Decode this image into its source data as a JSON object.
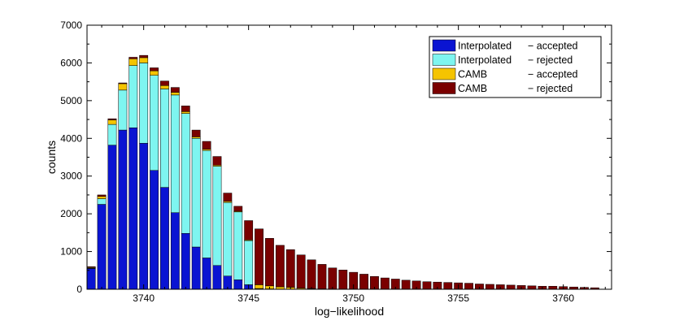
{
  "chart_data": {
    "type": "bar",
    "stacked": true,
    "title": "",
    "xlabel": "log−likelihood",
    "ylabel": "counts",
    "xlim": [
      3737.3,
      3762.3
    ],
    "ylim": [
      0,
      7000
    ],
    "xticks": [
      3740,
      3745,
      3750,
      3755,
      3760
    ],
    "yticks": [
      0,
      1000,
      2000,
      3000,
      4000,
      5000,
      6000,
      7000
    ],
    "bin_width": 0.5,
    "legend_position": "top-right",
    "x": [
      3737.5,
      3738.0,
      3738.5,
      3739.0,
      3739.5,
      3740.0,
      3740.5,
      3741.0,
      3741.5,
      3742.0,
      3742.5,
      3743.0,
      3743.5,
      3744.0,
      3744.5,
      3745.0,
      3745.5,
      3746.0,
      3746.5,
      3747.0,
      3747.5,
      3748.0,
      3748.5,
      3749.0,
      3749.5,
      3750.0,
      3750.5,
      3751.0,
      3751.5,
      3752.0,
      3752.5,
      3753.0,
      3753.5,
      3754.0,
      3754.5,
      3755.0,
      3755.5,
      3756.0,
      3756.5,
      3757.0,
      3757.5,
      3758.0,
      3758.5,
      3759.0,
      3759.5,
      3760.0,
      3760.5,
      3761.0,
      3761.5
    ],
    "series": [
      {
        "name": "Interpolated",
        "status": "− accepted",
        "color": "#0a14d2",
        "values": [
          550,
          2250,
          3820,
          4220,
          4280,
          3870,
          3150,
          2700,
          2030,
          1480,
          1120,
          830,
          630,
          350,
          250,
          120,
          20,
          10,
          5,
          0,
          0,
          0,
          0,
          0,
          0,
          0,
          0,
          0,
          0,
          0,
          0,
          0,
          0,
          0,
          0,
          0,
          0,
          0,
          0,
          0,
          0,
          0,
          0,
          0,
          0,
          0,
          0,
          0,
          0
        ]
      },
      {
        "name": "Interpolated",
        "status": "− rejected",
        "color": "#7ef5f0",
        "values": [
          10,
          150,
          550,
          1060,
          1650,
          2130,
          2520,
          2610,
          3120,
          3180,
          2880,
          2850,
          2630,
          1950,
          1800,
          1170,
          0,
          0,
          0,
          0,
          0,
          0,
          0,
          0,
          0,
          0,
          0,
          0,
          0,
          0,
          0,
          0,
          0,
          0,
          0,
          0,
          0,
          0,
          0,
          0,
          0,
          0,
          0,
          0,
          0,
          0,
          0,
          0,
          0
        ]
      },
      {
        "name": "CAMB",
        "status": "− accepted",
        "color": "#f5c400",
        "values": [
          20,
          60,
          120,
          170,
          180,
          140,
          120,
          90,
          70,
          50,
          40,
          30,
          30,
          30,
          20,
          20,
          100,
          80,
          60,
          50,
          30,
          20,
          10,
          5,
          0,
          0,
          0,
          0,
          0,
          0,
          0,
          0,
          0,
          0,
          0,
          0,
          0,
          0,
          0,
          0,
          0,
          0,
          0,
          0,
          0,
          0,
          0,
          0,
          0
        ]
      },
      {
        "name": "CAMB",
        "status": "− rejected",
        "color": "#7a0000",
        "values": [
          20,
          40,
          30,
          20,
          40,
          60,
          80,
          120,
          130,
          150,
          180,
          210,
          230,
          220,
          130,
          510,
          1480,
          1260,
          1100,
          1000,
          880,
          760,
          650,
          560,
          510,
          450,
          400,
          340,
          300,
          270,
          240,
          220,
          200,
          190,
          180,
          170,
          160,
          140,
          130,
          120,
          110,
          100,
          90,
          80,
          80,
          70,
          60,
          50,
          40
        ]
      }
    ]
  }
}
